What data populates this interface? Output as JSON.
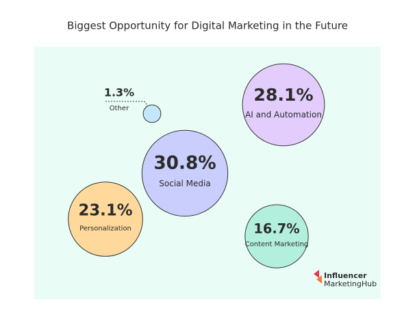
{
  "chart_data": {
    "type": "packed-bubble",
    "title": "Biggest Opportunity for Digital Marketing in the Future",
    "categories": [
      "Social Media",
      "AI and Automation",
      "Personalization",
      "Content Marketing",
      "Other"
    ],
    "values": [
      30.8,
      28.1,
      23.1,
      16.7,
      1.3
    ],
    "value_labels": [
      "30.8%",
      "28.1%",
      "23.1%",
      "16.7%",
      "1.3%"
    ],
    "colors": [
      "#c9cefc",
      "#e3cdfd",
      "#ffd99b",
      "#b3efdd",
      "#c3e8fb"
    ],
    "logo_text": [
      "Influencer",
      "MarketingHub"
    ]
  }
}
